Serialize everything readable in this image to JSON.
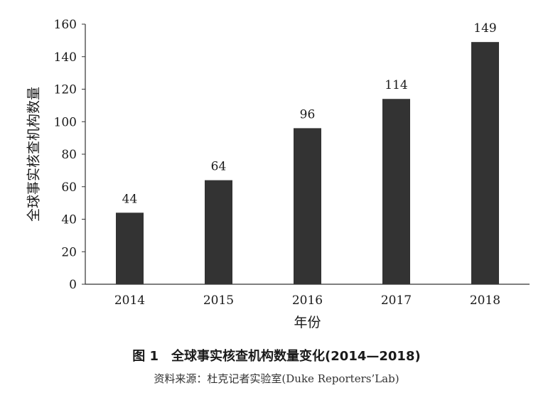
{
  "chart_data": {
    "type": "bar",
    "categories": [
      "2014",
      "2015",
      "2016",
      "2017",
      "2018"
    ],
    "values": [
      44,
      64,
      96,
      114,
      149
    ],
    "value_labels": [
      "44",
      "64",
      "96",
      "114",
      "149"
    ],
    "xlabel": "年份",
    "ylabel": "全球事实核查机构数量",
    "ylim": [
      0,
      160
    ],
    "yticks": [
      "0",
      "20",
      "40",
      "60",
      "80",
      "100",
      "120",
      "140",
      "160"
    ],
    "ytick_values": [
      0,
      20,
      40,
      60,
      80,
      100,
      120,
      140,
      160
    ],
    "grid": false,
    "bar_color": "#333333"
  },
  "caption": {
    "title": "图 1　全球事实核查机构数量变化(2014—2018)",
    "source": "资料来源：杜克记者实验室(Duke Reporters’Lab)"
  }
}
